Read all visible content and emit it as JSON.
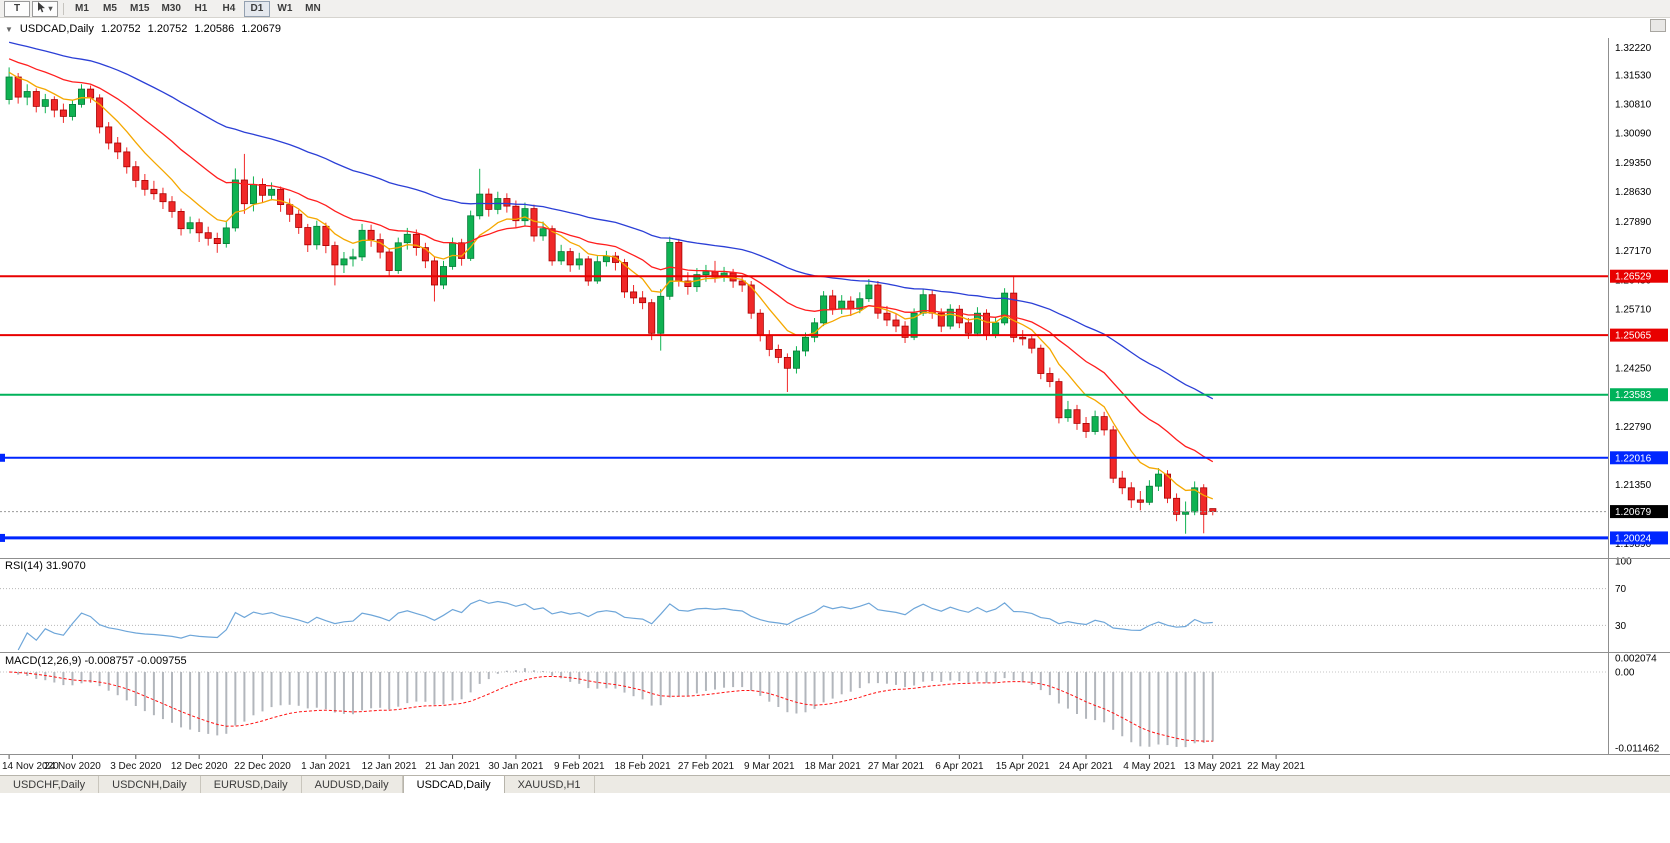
{
  "toolbar": {
    "tool_button": "T",
    "timeframes": [
      "M1",
      "M5",
      "M15",
      "M30",
      "H1",
      "H4",
      "D1",
      "W1",
      "MN"
    ],
    "active_timeframe": "D1"
  },
  "chart_header": {
    "collapse_icon": "▼",
    "symbol": "USDCAD,Daily",
    "ohlc": [
      "1.20752",
      "1.20752",
      "1.20586",
      "1.20679"
    ]
  },
  "rsi": {
    "label": "RSI(14) 31.9070",
    "value": "31.9070",
    "period": 14
  },
  "macd": {
    "label": "MACD(12,26,9) -0.008757 -0.009755",
    "macd_value": "-0.008757",
    "signal_value": "-0.009755"
  },
  "tabs": [
    "USDCHF,Daily",
    "USDCNH,Daily",
    "EURUSD,Daily",
    "AUDUSD,Daily",
    "USDCAD,Daily",
    "XAUUSD,H1"
  ],
  "active_tab_index": 4,
  "chart_data": {
    "type": "candlestick",
    "symbol": "USDCAD",
    "timeframe": "Daily",
    "price_ticks": [
      "1.32220",
      "1.31530",
      "1.30810",
      "1.30090",
      "1.29350",
      "1.28630",
      "1.27890",
      "1.27170",
      "1.26430",
      "1.25710",
      "1.24990",
      "1.24250",
      "1.23530",
      "1.22790",
      "1.22070",
      "1.21350",
      "1.20630",
      "1.19890"
    ],
    "price_range": [
      1.1955,
      1.3245
    ],
    "colors": {
      "up": "#0fb252",
      "up_border": "#077a38",
      "down": "#f02828",
      "down_border": "#a80000"
    },
    "ma": [
      {
        "period": 8,
        "color": "#f5a800",
        "seed_offset": 0.0015,
        "name": "ma-fast"
      },
      {
        "period": 20,
        "color": "#ff1e1e",
        "seed_offset": 0.005,
        "name": "ma-mid"
      },
      {
        "period": 48,
        "color": "#2b3fd6",
        "seed_offset": 0.009,
        "name": "ma-slow"
      }
    ],
    "hlines": [
      {
        "price": 1.26529,
        "label": "1.26529",
        "color": "#e80000",
        "width": 2,
        "edge_marker": false
      },
      {
        "price": 1.25065,
        "label": "1.25065",
        "color": "#e80000",
        "width": 2,
        "edge_marker": false
      },
      {
        "price": 1.23583,
        "label": "1.23583",
        "color": "#00b25a",
        "width": 2,
        "edge_marker": false
      },
      {
        "price": 1.22016,
        "label": "1.22016",
        "color": "#0026ff",
        "width": 2,
        "edge_marker": true
      },
      {
        "price": 1.20024,
        "label": "1.20024",
        "color": "#0026ff",
        "width": 3,
        "edge_marker": true
      }
    ],
    "current_price": {
      "value": 1.20679,
      "label": "1.20679"
    },
    "rsi_levels": [
      {
        "v": 100,
        "label": "100",
        "line": false
      },
      {
        "v": 70,
        "label": "70",
        "line": true
      },
      {
        "v": 30,
        "label": "30",
        "line": true
      }
    ],
    "rsi_color": "#6ea6d9",
    "macd_axis": [
      {
        "v": 0.002074,
        "label": "0.002074"
      },
      {
        "v": 0,
        "label": "0.00"
      },
      {
        "v": -0.011462,
        "label": "-0.011462"
      }
    ],
    "macd_hist_color": "#b2b6bc",
    "macd_signal_color": "#ff1414",
    "tick_indices": [
      0,
      7,
      14,
      21,
      28,
      35,
      42,
      49,
      56,
      63,
      70,
      77,
      84,
      91,
      98,
      105,
      112,
      119,
      126,
      133,
      140
    ],
    "time_labels": [
      "14 Nov 2020",
      "24 Nov 2020",
      "3 Dec 2020",
      "12 Dec 2020",
      "22 Dec 2020",
      "1 Jan 2021",
      "12 Jan 2021",
      "21 Jan 2021",
      "30 Jan 2021",
      "9 Feb 2021",
      "18 Feb 2021",
      "27 Feb 2021",
      "9 Mar 2021",
      "18 Mar 2021",
      "27 Mar 2021",
      "6 Apr 2021",
      "15 Apr 2021",
      "24 Apr 2021",
      "4 May 2021",
      "13 May 2021",
      "22 May 2021"
    ],
    "candles": [
      [
        1.3092,
        1.3172,
        1.308,
        1.3148
      ],
      [
        1.3148,
        1.3158,
        1.3082,
        1.3098
      ],
      [
        1.3098,
        1.313,
        1.3078,
        1.3112
      ],
      [
        1.3112,
        1.312,
        1.306,
        1.3075
      ],
      [
        1.3075,
        1.3106,
        1.3058,
        1.3092
      ],
      [
        1.3092,
        1.31,
        1.3048,
        1.3066
      ],
      [
        1.3066,
        1.3082,
        1.3034,
        1.305
      ],
      [
        1.305,
        1.3092,
        1.304,
        1.308
      ],
      [
        1.308,
        1.313,
        1.3072,
        1.3118
      ],
      [
        1.3118,
        1.3127,
        1.3084,
        1.3096
      ],
      [
        1.3096,
        1.3105,
        1.3008,
        1.3024
      ],
      [
        1.3024,
        1.3036,
        1.2968,
        1.2984
      ],
      [
        1.2984,
        1.2999,
        1.2944,
        1.2962
      ],
      [
        1.2962,
        1.2973,
        1.2908,
        1.2925
      ],
      [
        1.2925,
        1.2939,
        1.2874,
        1.2891
      ],
      [
        1.2891,
        1.2907,
        1.2853,
        1.2869
      ],
      [
        1.2869,
        1.289,
        1.2843,
        1.2858
      ],
      [
        1.2858,
        1.2873,
        1.282,
        1.2838
      ],
      [
        1.2838,
        1.2852,
        1.2798,
        1.2814
      ],
      [
        1.2814,
        1.2821,
        1.2754,
        1.2771
      ],
      [
        1.2771,
        1.2801,
        1.2759,
        1.2786
      ],
      [
        1.2786,
        1.2796,
        1.2738,
        1.2761
      ],
      [
        1.2761,
        1.2776,
        1.2729,
        1.2747
      ],
      [
        1.2747,
        1.2761,
        1.2711,
        1.2734
      ],
      [
        1.2734,
        1.2791,
        1.2724,
        1.2773
      ],
      [
        1.2773,
        1.2921,
        1.2764,
        1.2892
      ],
      [
        1.2892,
        1.2957,
        1.2808,
        1.2833
      ],
      [
        1.2833,
        1.2901,
        1.2814,
        1.2881
      ],
      [
        1.2881,
        1.2896,
        1.2836,
        1.2854
      ],
      [
        1.2854,
        1.2886,
        1.2841,
        1.2869
      ],
      [
        1.2869,
        1.2876,
        1.2813,
        1.2831
      ],
      [
        1.2831,
        1.2846,
        1.2788,
        1.2807
      ],
      [
        1.2807,
        1.2818,
        1.2758,
        1.2774
      ],
      [
        1.2774,
        1.2783,
        1.2713,
        1.2731
      ],
      [
        1.2731,
        1.2791,
        1.2719,
        1.2777
      ],
      [
        1.2777,
        1.2786,
        1.271,
        1.2729
      ],
      [
        1.2729,
        1.2739,
        1.263,
        1.2681
      ],
      [
        1.2681,
        1.2713,
        1.2661,
        1.2696
      ],
      [
        1.2696,
        1.2721,
        1.2677,
        1.2701
      ],
      [
        1.2701,
        1.2783,
        1.2691,
        1.2767
      ],
      [
        1.2767,
        1.2781,
        1.2726,
        1.2744
      ],
      [
        1.2744,
        1.2759,
        1.2697,
        1.2713
      ],
      [
        1.2713,
        1.2723,
        1.2651,
        1.2667
      ],
      [
        1.2667,
        1.2749,
        1.2659,
        1.2736
      ],
      [
        1.2736,
        1.2773,
        1.2719,
        1.2757
      ],
      [
        1.2757,
        1.2769,
        1.2704,
        1.2724
      ],
      [
        1.2724,
        1.2736,
        1.2673,
        1.2691
      ],
      [
        1.2691,
        1.2701,
        1.259,
        1.2631
      ],
      [
        1.2631,
        1.2691,
        1.2621,
        1.2677
      ],
      [
        1.2677,
        1.2749,
        1.2669,
        1.2736
      ],
      [
        1.2736,
        1.2746,
        1.2679,
        1.2697
      ],
      [
        1.2697,
        1.2816,
        1.2691,
        1.2803
      ],
      [
        1.2803,
        1.292,
        1.2794,
        1.2857
      ],
      [
        1.2857,
        1.2871,
        1.2801,
        1.2819
      ],
      [
        1.2819,
        1.2863,
        1.2807,
        1.2846
      ],
      [
        1.2846,
        1.2859,
        1.2811,
        1.2827
      ],
      [
        1.2827,
        1.2841,
        1.2773,
        1.2791
      ],
      [
        1.2791,
        1.2836,
        1.2779,
        1.2821
      ],
      [
        1.2821,
        1.2831,
        1.2739,
        1.2753
      ],
      [
        1.2753,
        1.2789,
        1.2741,
        1.2771
      ],
      [
        1.2771,
        1.2779,
        1.2679,
        1.2691
      ],
      [
        1.2691,
        1.2731,
        1.2681,
        1.2714
      ],
      [
        1.2714,
        1.2723,
        1.2664,
        1.2681
      ],
      [
        1.2681,
        1.2711,
        1.2669,
        1.2696
      ],
      [
        1.2696,
        1.2703,
        1.2629,
        1.2641
      ],
      [
        1.2641,
        1.2703,
        1.2634,
        1.2689
      ],
      [
        1.2689,
        1.2716,
        1.2677,
        1.2703
      ],
      [
        1.2703,
        1.2713,
        1.2667,
        1.2687
      ],
      [
        1.2687,
        1.2696,
        1.2599,
        1.2614
      ],
      [
        1.2614,
        1.2631,
        1.2584,
        1.2599
      ],
      [
        1.2599,
        1.2616,
        1.2571,
        1.2587
      ],
      [
        1.2587,
        1.2596,
        1.2494,
        1.2511
      ],
      [
        1.2511,
        1.2621,
        1.2468,
        1.2603
      ],
      [
        1.2603,
        1.2751,
        1.2594,
        1.2737
      ],
      [
        1.2737,
        1.2746,
        1.2627,
        1.2641
      ],
      [
        1.2641,
        1.2663,
        1.2607,
        1.2627
      ],
      [
        1.2627,
        1.2673,
        1.2614,
        1.2657
      ],
      [
        1.2657,
        1.2681,
        1.2639,
        1.2664
      ],
      [
        1.2664,
        1.2691,
        1.2637,
        1.2651
      ],
      [
        1.2651,
        1.2676,
        1.2639,
        1.2661
      ],
      [
        1.2661,
        1.2671,
        1.2624,
        1.2641
      ],
      [
        1.2641,
        1.2653,
        1.2614,
        1.2631
      ],
      [
        1.2631,
        1.2641,
        1.2547,
        1.2561
      ],
      [
        1.2561,
        1.2571,
        1.2491,
        1.2507
      ],
      [
        1.2507,
        1.2519,
        1.2454,
        1.2471
      ],
      [
        1.2471,
        1.2483,
        1.2437,
        1.2451
      ],
      [
        1.2451,
        1.2461,
        1.2365,
        1.2424
      ],
      [
        1.2424,
        1.2479,
        1.2411,
        1.2467
      ],
      [
        1.2467,
        1.2513,
        1.2454,
        1.2501
      ],
      [
        1.2501,
        1.2549,
        1.2489,
        1.2537
      ],
      [
        1.2537,
        1.2616,
        1.2529,
        1.2604
      ],
      [
        1.2604,
        1.2619,
        1.2557,
        1.2571
      ],
      [
        1.2571,
        1.2606,
        1.2559,
        1.2591
      ],
      [
        1.2591,
        1.2603,
        1.2554,
        1.2571
      ],
      [
        1.2571,
        1.2613,
        1.2561,
        1.2597
      ],
      [
        1.2597,
        1.2646,
        1.2589,
        1.2631
      ],
      [
        1.2631,
        1.2641,
        1.2547,
        1.2561
      ],
      [
        1.2561,
        1.2579,
        1.2529,
        1.2544
      ],
      [
        1.2544,
        1.2559,
        1.2514,
        1.2529
      ],
      [
        1.2529,
        1.2541,
        1.2487,
        1.2501
      ],
      [
        1.2501,
        1.2573,
        1.2494,
        1.2561
      ],
      [
        1.2561,
        1.2621,
        1.2554,
        1.2607
      ],
      [
        1.2607,
        1.2619,
        1.2547,
        1.2561
      ],
      [
        1.2561,
        1.2573,
        1.2514,
        1.2529
      ],
      [
        1.2529,
        1.2583,
        1.2521,
        1.2571
      ],
      [
        1.2571,
        1.2581,
        1.2524,
        1.2537
      ],
      [
        1.2537,
        1.2549,
        1.2497,
        1.2511
      ],
      [
        1.2511,
        1.2576,
        1.2504,
        1.2561
      ],
      [
        1.2561,
        1.2571,
        1.2494,
        1.2507
      ],
      [
        1.2507,
        1.2551,
        1.2499,
        1.2537
      ],
      [
        1.2537,
        1.2623,
        1.2531,
        1.2611
      ],
      [
        1.2611,
        1.2654,
        1.2489,
        1.2501
      ],
      [
        1.2501,
        1.2519,
        1.2481,
        1.2497
      ],
      [
        1.2497,
        1.2509,
        1.2461,
        1.2474
      ],
      [
        1.2474,
        1.2483,
        1.2397,
        1.2411
      ],
      [
        1.2411,
        1.2426,
        1.2377,
        1.2391
      ],
      [
        1.2391,
        1.2399,
        1.2287,
        1.2301
      ],
      [
        1.2301,
        1.2343,
        1.2291,
        1.2321
      ],
      [
        1.2321,
        1.2333,
        1.2271,
        1.2287
      ],
      [
        1.2287,
        1.2303,
        1.2251,
        1.2267
      ],
      [
        1.2267,
        1.2319,
        1.2259,
        1.2304
      ],
      [
        1.2304,
        1.2316,
        1.2257,
        1.2271
      ],
      [
        1.2271,
        1.2281,
        1.2139,
        1.2151
      ],
      [
        1.2151,
        1.2169,
        1.2111,
        1.2127
      ],
      [
        1.2127,
        1.2141,
        1.2077,
        1.2097
      ],
      [
        1.2097,
        1.2119,
        1.2071,
        1.2091
      ],
      [
        1.2091,
        1.2146,
        1.2084,
        1.2131
      ],
      [
        1.2131,
        1.2176,
        1.2119,
        1.2161
      ],
      [
        1.2161,
        1.2171,
        1.2089,
        1.2101
      ],
      [
        1.2101,
        1.2113,
        1.2044,
        1.2061
      ],
      [
        1.2061,
        1.2093,
        1.2013,
        1.2067
      ],
      [
        1.2067,
        1.2143,
        1.2059,
        1.2127
      ],
      [
        1.2127,
        1.2136,
        1.2014,
        1.2061
      ],
      [
        1.20752,
        1.20752,
        1.20586,
        1.20679
      ]
    ]
  }
}
